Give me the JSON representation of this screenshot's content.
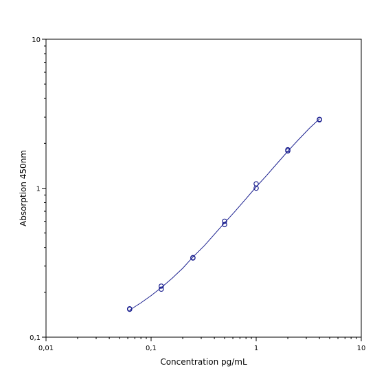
{
  "chart_data": {
    "type": "scatter",
    "title": "",
    "xlabel": "Concentration pg/mL",
    "ylabel": "Absorption 450nm",
    "xscale": "log",
    "yscale": "log",
    "xlim": [
      0.01,
      10
    ],
    "ylim": [
      0.1,
      10
    ],
    "x_ticks": [
      0.01,
      0.1,
      1,
      10
    ],
    "x_tick_labels": [
      "0,01",
      "0,1",
      "1",
      "10"
    ],
    "y_ticks": [
      0.1,
      1,
      10
    ],
    "y_tick_labels": [
      "0,1",
      "1",
      "10"
    ],
    "grid": false,
    "legend": "none",
    "colors": {
      "points": "#1a1f8f",
      "curve": "#1a1f8f",
      "frame": "#000000"
    },
    "series": [
      {
        "marker": "open-circle",
        "points": [
          {
            "x": 0.0625,
            "y": 0.155
          },
          {
            "x": 0.0625,
            "y": 0.154
          },
          {
            "x": 0.125,
            "y": 0.22
          },
          {
            "x": 0.125,
            "y": 0.21
          },
          {
            "x": 0.25,
            "y": 0.34
          },
          {
            "x": 0.25,
            "y": 0.342
          },
          {
            "x": 0.5,
            "y": 0.6
          },
          {
            "x": 0.5,
            "y": 0.57
          },
          {
            "x": 1.0,
            "y": 1.07
          },
          {
            "x": 1.0,
            "y": 1.0
          },
          {
            "x": 2.0,
            "y": 1.81
          },
          {
            "x": 2.0,
            "y": 1.78
          },
          {
            "x": 4.0,
            "y": 2.9
          },
          {
            "x": 4.0,
            "y": 2.88
          }
        ]
      }
    ],
    "fit_curve": {
      "x": [
        0.0625,
        0.08,
        0.1,
        0.125,
        0.16,
        0.2,
        0.25,
        0.32,
        0.4,
        0.5,
        0.63,
        0.8,
        1.0,
        1.26,
        1.6,
        2.0,
        2.5,
        3.2,
        4.0
      ],
      "y": [
        0.152,
        0.17,
        0.19,
        0.215,
        0.25,
        0.29,
        0.345,
        0.41,
        0.49,
        0.585,
        0.7,
        0.85,
        1.02,
        1.22,
        1.48,
        1.77,
        2.1,
        2.52,
        2.92
      ]
    }
  }
}
